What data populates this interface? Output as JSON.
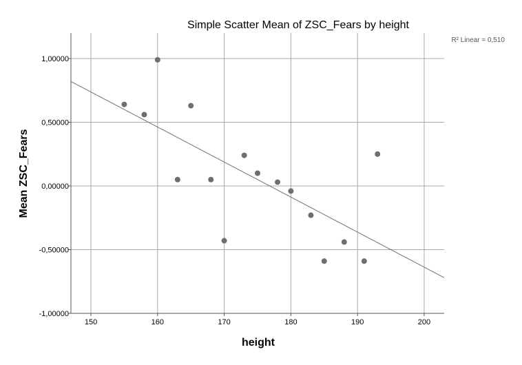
{
  "chart_data": {
    "type": "scatter",
    "title": "Simple Scatter Mean of ZSC_Fears by height",
    "xlabel": "height",
    "ylabel": "Mean ZSC_Fears",
    "xlim": [
      147,
      203
    ],
    "ylim": [
      -1.0,
      1.2
    ],
    "x_ticks": [
      150,
      160,
      170,
      180,
      190,
      200
    ],
    "x_tick_labels": [
      "150",
      "160",
      "170",
      "180",
      "190",
      "200"
    ],
    "y_ticks": [
      -1.0,
      -0.5,
      0.0,
      0.5,
      1.0
    ],
    "y_tick_labels": [
      "-1,00000",
      "-0,50000",
      "0,00000",
      "0,50000",
      "1,00000"
    ],
    "grid": true,
    "points": [
      {
        "x": 155,
        "y": 0.64
      },
      {
        "x": 158,
        "y": 0.56
      },
      {
        "x": 160,
        "y": 0.99
      },
      {
        "x": 163,
        "y": 0.05
      },
      {
        "x": 165,
        "y": 0.63
      },
      {
        "x": 168,
        "y": 0.05
      },
      {
        "x": 170,
        "y": -0.43
      },
      {
        "x": 173,
        "y": 0.24
      },
      {
        "x": 175,
        "y": 0.1
      },
      {
        "x": 178,
        "y": 0.03
      },
      {
        "x": 180,
        "y": -0.04
      },
      {
        "x": 183,
        "y": -0.23
      },
      {
        "x": 185,
        "y": -0.59
      },
      {
        "x": 188,
        "y": -0.44
      },
      {
        "x": 191,
        "y": -0.59
      },
      {
        "x": 193,
        "y": 0.25
      }
    ],
    "fit_line": {
      "x": [
        147,
        203
      ],
      "y": [
        0.82,
        -0.72
      ]
    },
    "annotation": "R² Linear = 0,510",
    "colors": {
      "points": "#6e6e6e",
      "fit_line": "#707070",
      "grid": "#a8a8a8",
      "axis": "#555555"
    }
  }
}
